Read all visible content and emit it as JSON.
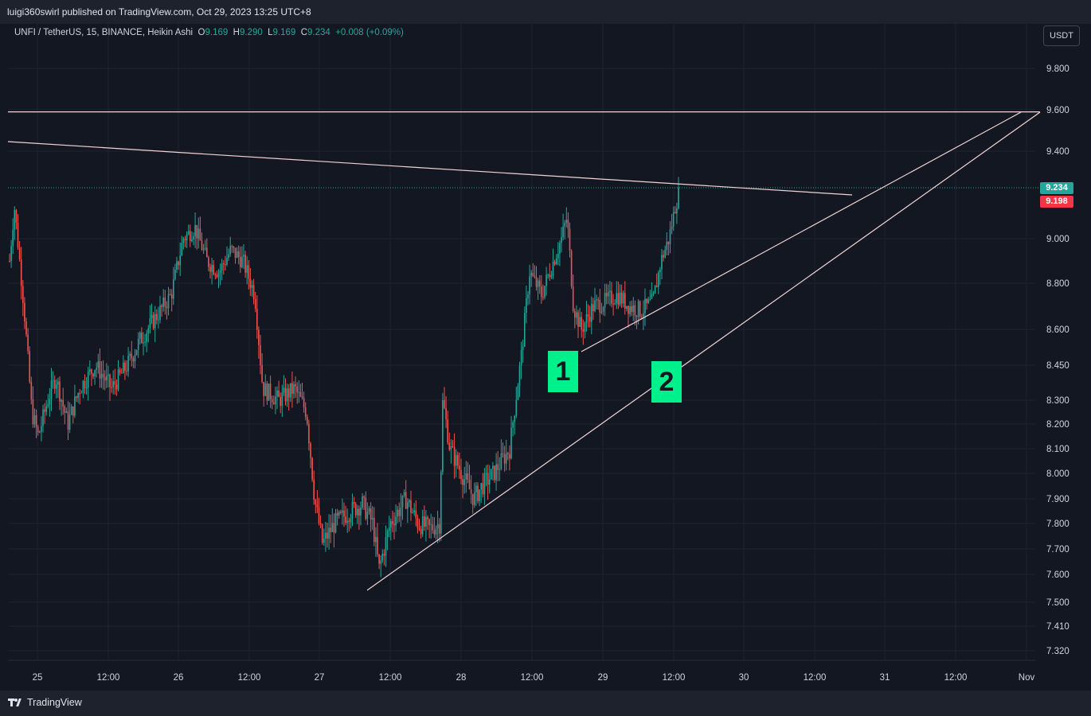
{
  "header": {
    "publisher_text": "luigi360swirl published on TradingView.com, Oct 29, 2023 13:25 UTC+8"
  },
  "legend": {
    "symbol_text": "UNFI / TetherUS, 15, BINANCE, Heikin Ashi",
    "o_label": "O",
    "o_value": "9.169",
    "h_label": "H",
    "h_value": "9.290",
    "l_label": "L",
    "l_value": "9.169",
    "c_label": "C",
    "c_value": "9.234",
    "change": "+0.008 (+0.09%)"
  },
  "currency_button": "USDT",
  "price_tags": {
    "last": "9.234",
    "second": "9.198"
  },
  "annotations": {
    "label_1": "1",
    "label_2": "2"
  },
  "footer": {
    "brand": "TradingView"
  },
  "colors": {
    "up": "#26a69a",
    "down": "#ef5350",
    "background": "#131722",
    "trendline": "#f3d4d4",
    "label_bg": "#00f08c"
  },
  "chart_data": {
    "type": "candlestick",
    "title": "",
    "y_axis_ticks": [
      "9.800",
      "9.600",
      "9.400",
      "9.234",
      "9.000",
      "8.800",
      "8.600",
      "8.450",
      "8.300",
      "8.200",
      "8.100",
      "8.000",
      "7.900",
      "7.800",
      "7.700",
      "7.600",
      "7.500",
      "7.410",
      "7.320"
    ],
    "y_axis_tick_values": [
      9.8,
      9.6,
      9.4,
      9.234,
      9.0,
      8.8,
      8.6,
      8.45,
      8.3,
      8.2,
      8.1,
      8.0,
      7.9,
      7.8,
      7.7,
      7.6,
      7.5,
      7.41,
      7.32
    ],
    "x_axis_ticks": [
      "25",
      "12:00",
      "26",
      "12:00",
      "27",
      "12:00",
      "28",
      "12:00",
      "29",
      "12:00",
      "30",
      "12:00",
      "31",
      "12:00",
      "Nov"
    ],
    "last_price": 9.234,
    "candles_key_points": [
      {
        "label": "start",
        "price": 8.9
      },
      {
        "label": "26 high",
        "price": 9.4
      },
      {
        "label": "27 low",
        "price": 7.57
      },
      {
        "label": "28 12:00 rally",
        "price": 8.95
      },
      {
        "label": "28 pullback low",
        "price": 8.5
      },
      {
        "label": "29 12:00 close",
        "price": 9.234
      }
    ],
    "lines": [
      {
        "name": "resistance horizontal",
        "from": [
          "24 start",
          9.59
        ],
        "to": [
          "Nov",
          9.59
        ]
      },
      {
        "name": "descending trendline",
        "from": [
          "24 start",
          9.45
        ],
        "to": [
          "30 12:00",
          9.19
        ]
      },
      {
        "name": "rising trendline 1",
        "from": [
          "28 pullback low",
          8.5
        ],
        "to": [
          "Nov",
          9.59
        ]
      },
      {
        "name": "rising trendline 2",
        "from": [
          "27 low",
          7.56
        ],
        "to": [
          "Nov",
          9.59
        ]
      }
    ]
  }
}
